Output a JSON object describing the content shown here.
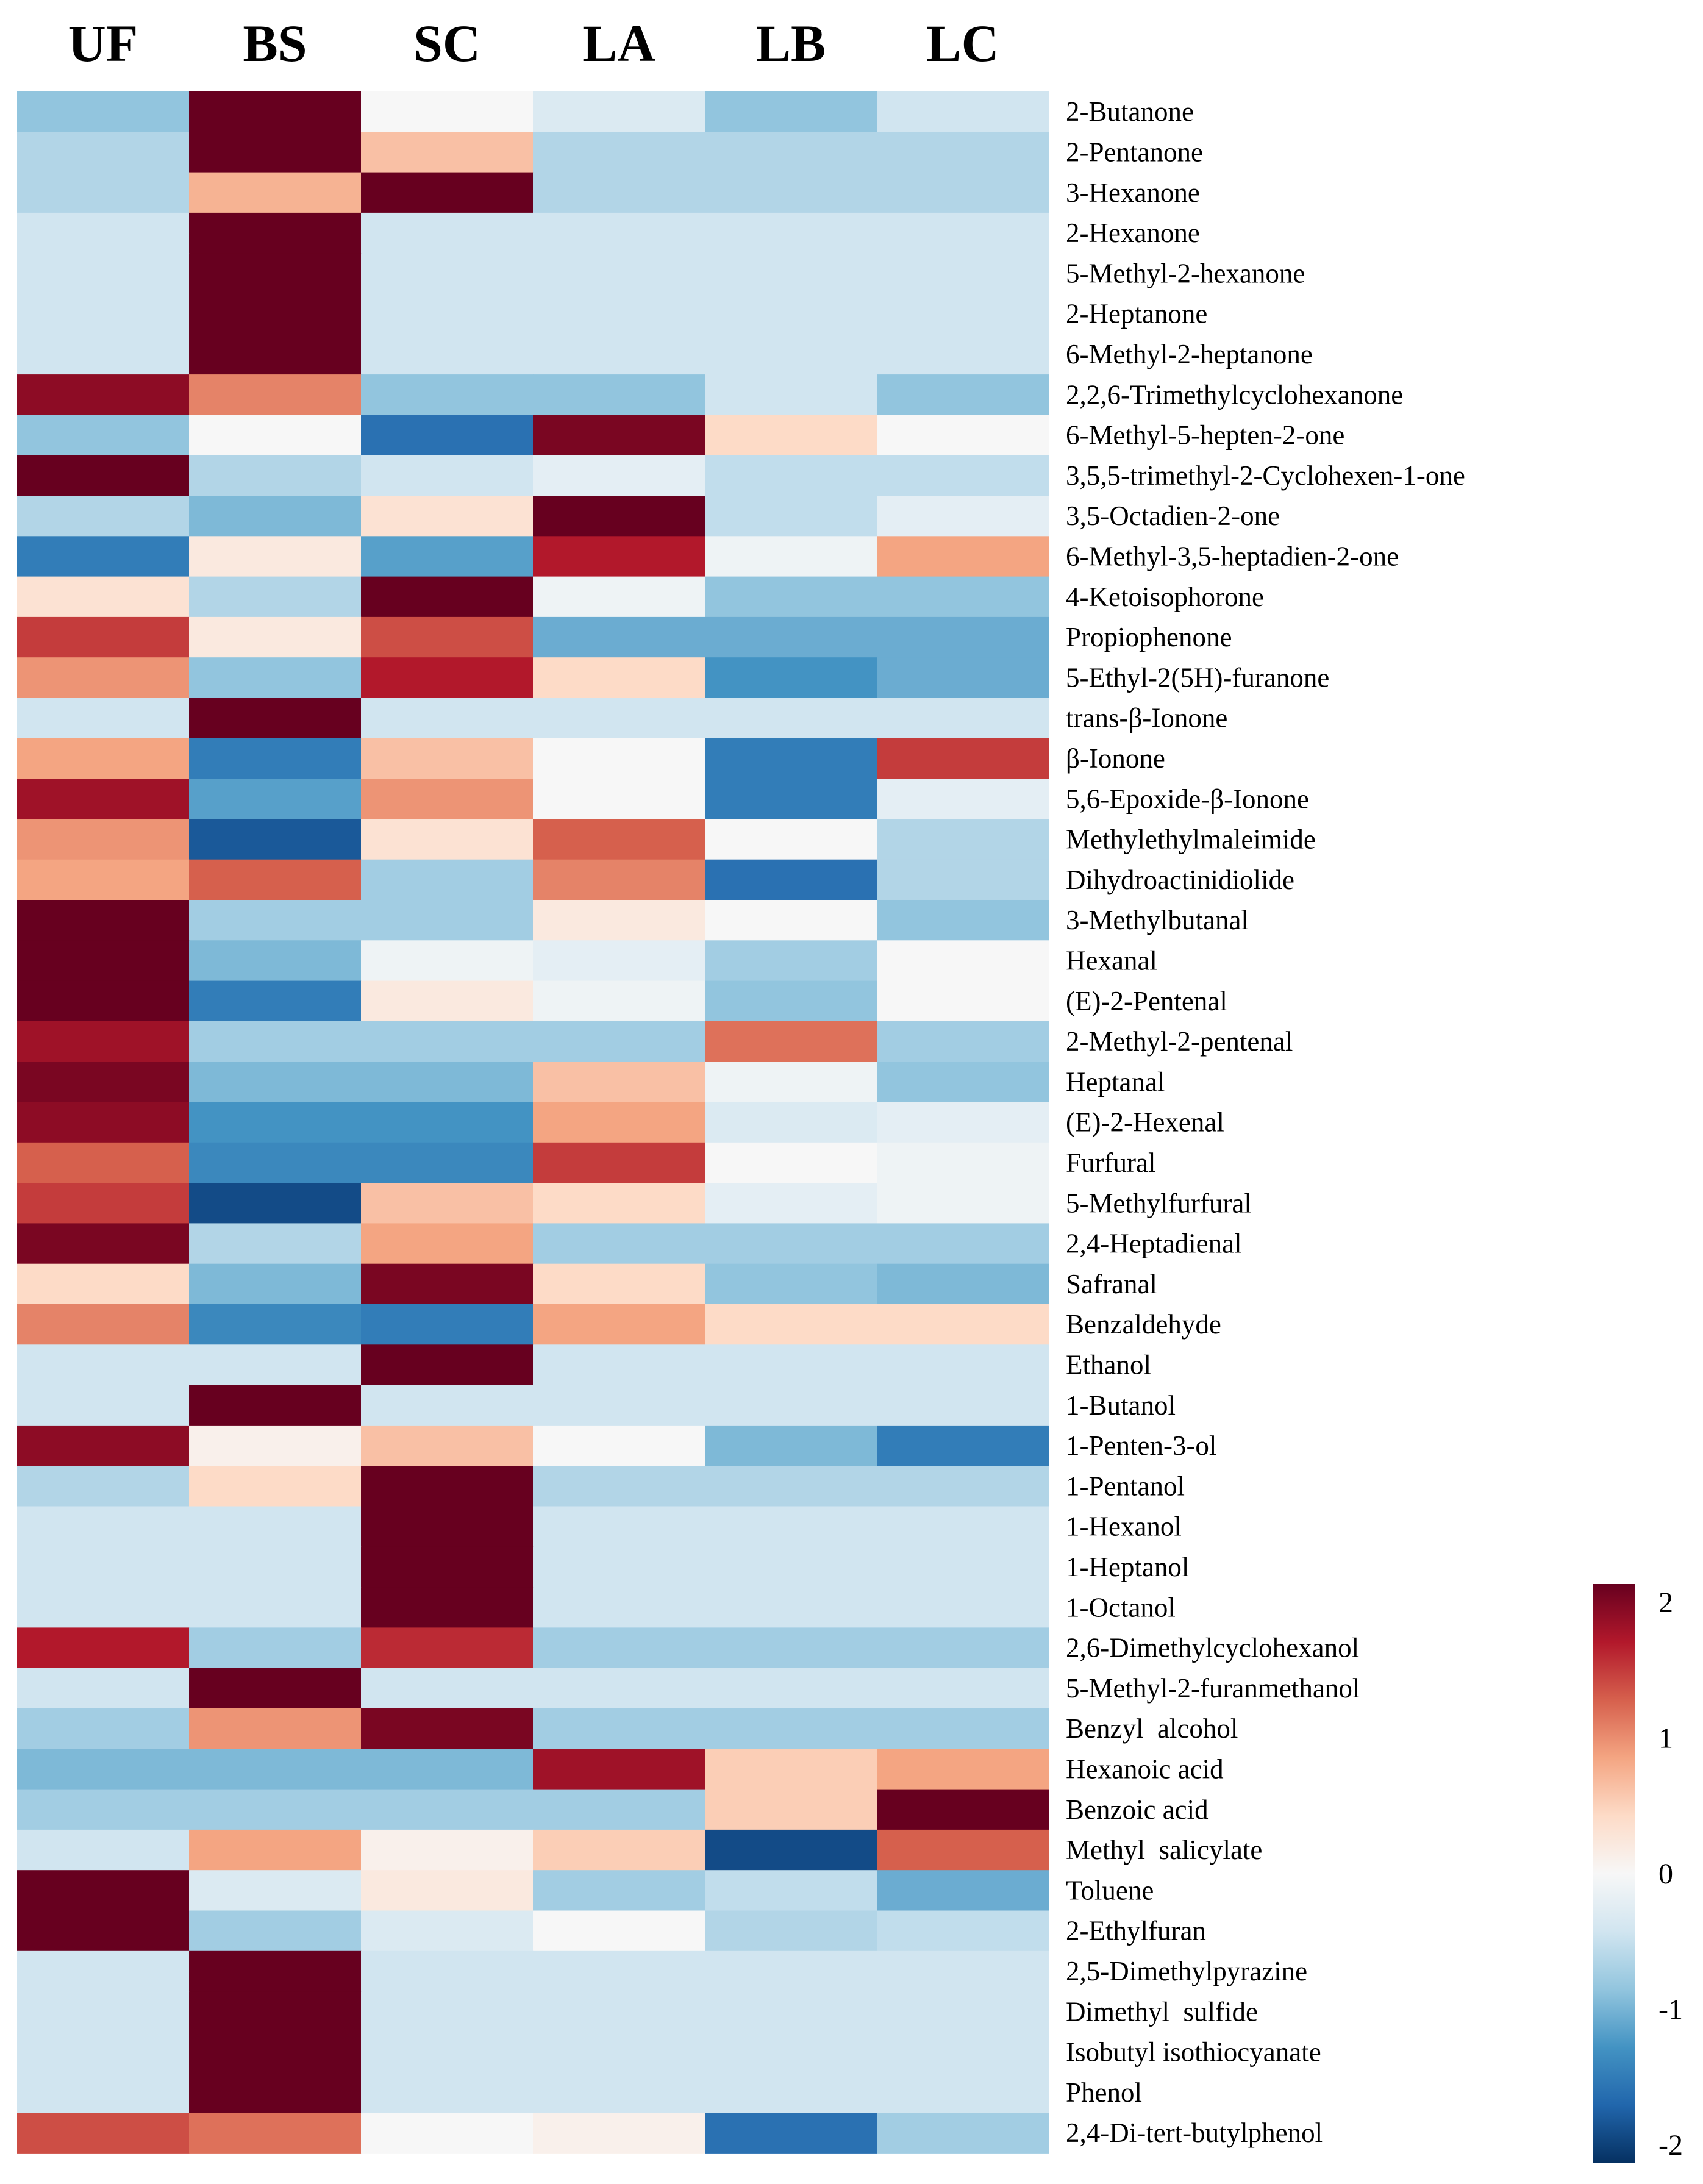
{
  "chart_data": {
    "type": "heatmap",
    "columns": [
      "UF",
      "BS",
      "SC",
      "LA",
      "LB",
      "LC"
    ],
    "rows": [
      "2-Butanone",
      "2-Pentanone",
      "3-Hexanone",
      "2-Hexanone",
      "5-Methyl-2-hexanone",
      "2-Heptanone",
      "6-Methyl-2-heptanone",
      "2,2,6-Trimethylcyclohexanone",
      "6-Methyl-5-hepten-2-one",
      "3,5,5-trimethyl-2-Cyclohexen-1-one",
      "3,5-Octadien-2-one",
      "6-Methyl-3,5-heptadien-2-one",
      "4-Ketoisophorone",
      "Propiophenone",
      "5-Ethyl-2(5H)-furanone",
      "trans-β-Ionone",
      "β-Ionone",
      "5,6-Epoxide-β-Ionone",
      "Methylethylmaleimide",
      "Dihydroactinidiolide",
      "3-Methylbutanal",
      "Hexanal",
      "(E)-2-Pentenal",
      "2-Methyl-2-pentenal",
      "Heptanal",
      "(E)-2-Hexenal",
      "Furfural",
      "5-Methylfurfural",
      "2,4-Heptadienal",
      "Safranal",
      "Benzaldehyde",
      "Ethanol",
      "1-Butanol",
      "1-Penten-3-ol",
      "1-Pentanol",
      "1-Hexanol",
      "1-Heptanol",
      "1-Octanol",
      "2,6-Dimethylcyclohexanol",
      "5-Methyl-2-furanmethanol",
      "Benzyl  alcohol",
      "Hexanoic acid",
      "Benzoic acid",
      "Methyl  salicylate",
      "Toluene",
      "2-Ethylfuran",
      "2,5-Dimethylpyrazine",
      "Dimethyl  sulfide",
      "Isobutyl isothiocyanate",
      "Phenol",
      "2,4-Di-tert-butylphenol"
    ],
    "values": [
      [
        -0.8,
        2.2,
        0,
        -0.3,
        -0.8,
        -0.4
      ],
      [
        -0.6,
        2.0,
        0.6,
        -0.6,
        -0.6,
        -0.6
      ],
      [
        -0.6,
        0.7,
        2.0,
        -0.6,
        -0.6,
        -0.6
      ],
      [
        -0.4,
        2.2,
        -0.4,
        -0.4,
        -0.4,
        -0.4
      ],
      [
        -0.4,
        2.2,
        -0.4,
        -0.4,
        -0.4,
        -0.4
      ],
      [
        -0.4,
        2.2,
        -0.4,
        -0.4,
        -0.4,
        -0.4
      ],
      [
        -0.4,
        2.2,
        -0.4,
        -0.4,
        -0.4,
        -0.4
      ],
      [
        1.8,
        1.0,
        -0.8,
        -0.8,
        -0.4,
        -0.8
      ],
      [
        -0.8,
        0,
        -1.5,
        1.9,
        0.4,
        0
      ],
      [
        2.3,
        -0.6,
        -0.4,
        -0.2,
        -0.5,
        -0.5
      ],
      [
        -0.6,
        -0.9,
        0.3,
        2.1,
        -0.5,
        -0.2
      ],
      [
        -1.4,
        0.2,
        -1.1,
        1.6,
        -0.1,
        0.8
      ],
      [
        0.3,
        -0.6,
        2.1,
        -0.1,
        -0.8,
        -0.8
      ],
      [
        1.4,
        0.2,
        1.3,
        -1.0,
        -1.0,
        -1.0
      ],
      [
        0.9,
        -0.8,
        1.6,
        0.4,
        -1.2,
        -1.0
      ],
      [
        -0.4,
        2.3,
        -0.4,
        -0.4,
        -0.4,
        -0.4
      ],
      [
        0.8,
        -1.4,
        0.6,
        0,
        -1.4,
        1.4
      ],
      [
        1.7,
        -1.1,
        0.9,
        0,
        -1.4,
        -0.2
      ],
      [
        0.9,
        -1.7,
        0.3,
        1.2,
        0,
        -0.6
      ],
      [
        0.8,
        1.2,
        -0.7,
        1.0,
        -1.5,
        -0.6
      ],
      [
        2.2,
        -0.7,
        -0.7,
        0.2,
        0,
        -0.8
      ],
      [
        2.3,
        -0.9,
        -0.1,
        -0.2,
        -0.7,
        0
      ],
      [
        2.0,
        -1.4,
        0.2,
        -0.1,
        -0.8,
        0
      ],
      [
        1.7,
        -0.7,
        -0.7,
        -0.7,
        1.1,
        -0.7
      ],
      [
        1.9,
        -0.9,
        -0.9,
        0.6,
        -0.1,
        -0.8
      ],
      [
        1.8,
        -1.2,
        -1.2,
        0.8,
        -0.3,
        -0.2
      ],
      [
        1.2,
        -1.3,
        -1.3,
        1.4,
        0,
        -0.1
      ],
      [
        1.4,
        -1.8,
        0.6,
        0.4,
        -0.2,
        -0.1
      ],
      [
        1.9,
        -0.6,
        0.8,
        -0.7,
        -0.7,
        -0.7
      ],
      [
        0.4,
        -0.9,
        1.9,
        0.4,
        -0.8,
        -0.9
      ],
      [
        1.0,
        -1.3,
        -1.4,
        0.8,
        0.4,
        0.4
      ],
      [
        -0.4,
        -0.4,
        2.2,
        -0.4,
        -0.4,
        -0.4
      ],
      [
        -0.4,
        2.2,
        -0.4,
        -0.4,
        -0.4,
        -0.4
      ],
      [
        1.8,
        0.1,
        0.6,
        0,
        -0.9,
        -1.4
      ],
      [
        -0.6,
        0.4,
        2.1,
        -0.6,
        -0.6,
        -0.6
      ],
      [
        -0.4,
        -0.4,
        2.2,
        -0.4,
        -0.4,
        -0.4
      ],
      [
        -0.4,
        -0.4,
        2.2,
        -0.4,
        -0.4,
        -0.4
      ],
      [
        -0.4,
        -0.4,
        2.2,
        -0.4,
        -0.4,
        -0.4
      ],
      [
        1.6,
        -0.7,
        1.5,
        -0.7,
        -0.7,
        -0.7
      ],
      [
        -0.4,
        2.2,
        -0.4,
        -0.4,
        -0.4,
        -0.4
      ],
      [
        -0.7,
        0.9,
        1.9,
        -0.7,
        -0.7,
        -0.7
      ],
      [
        -0.9,
        -0.9,
        -0.9,
        1.7,
        0.5,
        0.8
      ],
      [
        -0.7,
        -0.7,
        -0.7,
        -0.7,
        0.5,
        2.1
      ],
      [
        -0.4,
        0.8,
        0.1,
        0.5,
        -1.8,
        1.2
      ],
      [
        2.3,
        -0.3,
        0.2,
        -0.7,
        -0.5,
        -1.0
      ],
      [
        2.3,
        -0.7,
        -0.3,
        0,
        -0.6,
        -0.5
      ],
      [
        -0.4,
        2.2,
        -0.4,
        -0.4,
        -0.4,
        -0.4
      ],
      [
        -0.4,
        2.2,
        -0.4,
        -0.4,
        -0.4,
        -0.4
      ],
      [
        -0.4,
        2.2,
        -0.4,
        -0.4,
        -0.4,
        -0.4
      ],
      [
        -0.4,
        2.2,
        -0.4,
        -0.4,
        -0.4,
        -0.4
      ],
      [
        1.3,
        1.1,
        0,
        0.1,
        -1.5,
        -0.7
      ]
    ],
    "color_range": [
      -2,
      2
    ],
    "colorbar_ticks": [
      "2",
      "1",
      "0",
      "-1",
      "-2"
    ],
    "colorbar_tick_values": [
      2,
      1,
      0,
      -1,
      -2
    ],
    "color_stops": [
      "#053061",
      "#2166ac",
      "#4393c3",
      "#92c5de",
      "#d1e5f0",
      "#f7f7f7",
      "#fddbc7",
      "#f4a582",
      "#d6604d",
      "#b2182b",
      "#67001f"
    ],
    "title": "",
    "xlabel": "",
    "ylabel": "",
    "legend": "colorbar right"
  }
}
